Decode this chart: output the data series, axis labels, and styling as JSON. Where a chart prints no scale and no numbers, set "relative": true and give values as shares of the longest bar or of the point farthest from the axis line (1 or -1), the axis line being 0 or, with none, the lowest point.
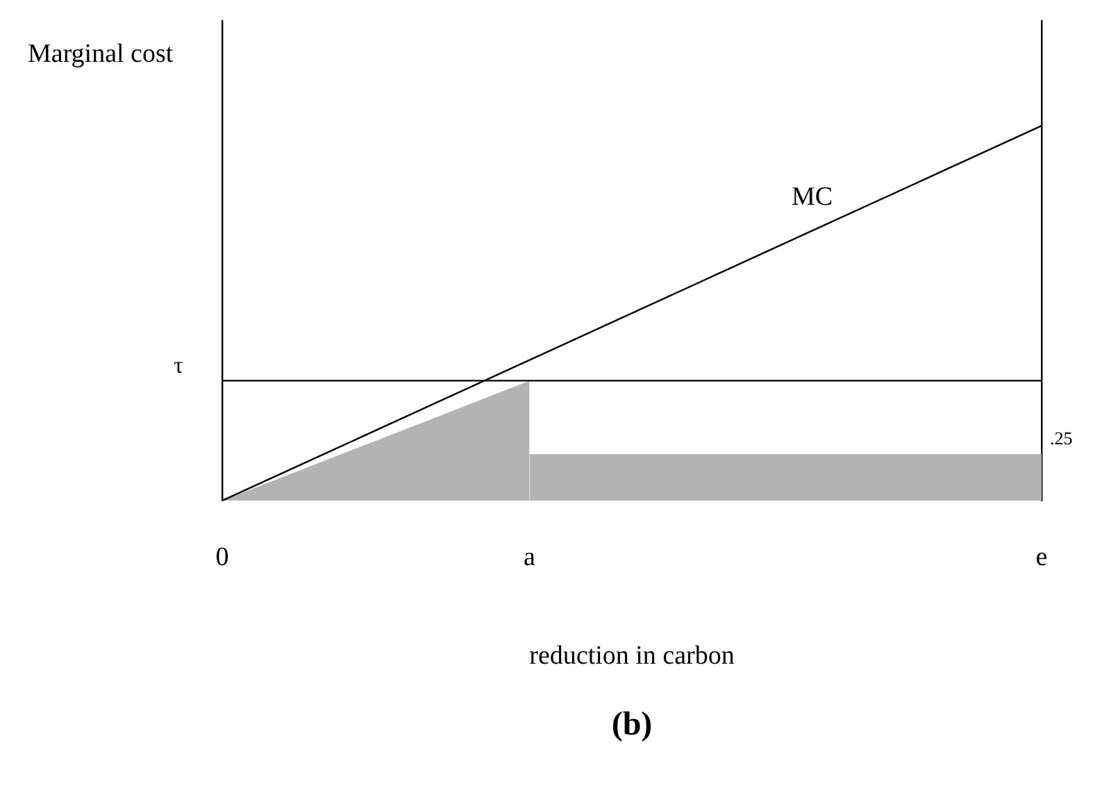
{
  "chart_data": {
    "type": "line",
    "title": "(b)",
    "xlabel": "reduction in carbon",
    "ylabel": "Marginal cost",
    "relative": true,
    "categories": [
      "0",
      null,
      null,
      "a",
      null,
      null,
      null,
      null,
      "e"
    ],
    "series": [
      {
        "name": "MC",
        "type": "line",
        "color": "#000000",
        "values": [
          0,
          0.125,
          0.25,
          0.375,
          0.5,
          0.625,
          0.75,
          0.875,
          1
        ]
      },
      {
        "type": "area",
        "color": "#b3b3b3",
        "values": [
          0,
          0.107,
          0.213,
          0.32,
          null,
          null,
          null,
          null,
          null
        ]
      },
      {
        "type": "area",
        "color": "#b3b3b3",
        "values": [
          null,
          null,
          null,
          0.124,
          0.124,
          0.124,
          0.124,
          0.124,
          0.124
        ]
      }
    ],
    "ref_lines": [
      {
        "axis": "y",
        "value": 0.32,
        "label": "τ",
        "color": "#000000"
      }
    ],
    "annotations": [
      {
        "text": ".25",
        "x": "e",
        "y": 0.124
      }
    ],
    "grid": false,
    "legend": false
  }
}
